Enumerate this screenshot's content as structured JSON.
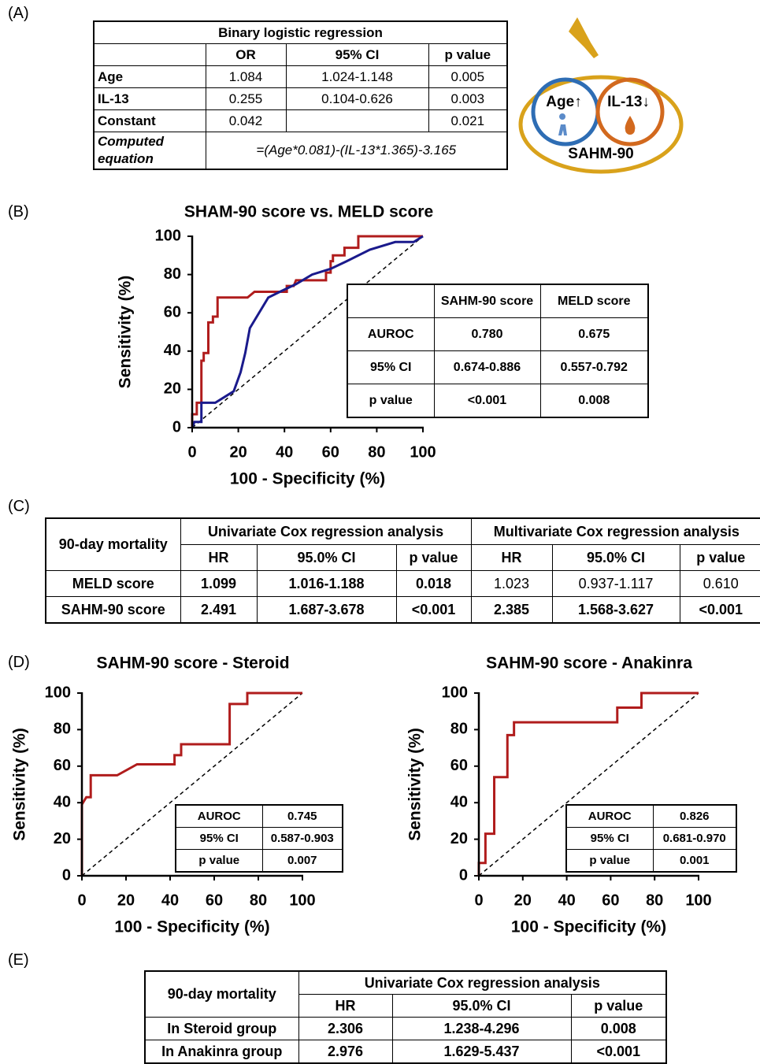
{
  "panel_labels": {
    "a": "(A)",
    "b": "(B)",
    "c": "(C)",
    "d": "(D)",
    "e": "(E)"
  },
  "table_a": {
    "title": "Binary logistic regression",
    "columns": [
      "OR",
      "95% CI",
      "p value"
    ],
    "rows": [
      {
        "label": "Age",
        "or": "1.084",
        "ci": "1.024-1.148",
        "p": "0.005"
      },
      {
        "label": "IL-13",
        "or": "0.255",
        "ci": "0.104-0.626",
        "p": "0.003"
      },
      {
        "label": "Constant",
        "or": "0.042",
        "p": "0.021"
      }
    ],
    "equation_label": "Computed equation",
    "equation": "=(Age*0.081)-(IL-13*1.365)-3.165"
  },
  "diagram": {
    "age": "Age↑",
    "il13": "IL-13↓",
    "score": "SAHM-90"
  },
  "chart_data": [
    {
      "type": "line",
      "title": "SHAM-90 score vs. MELD score",
      "x_label": "100 - Specificity (%)",
      "y_label": "Sensitivity (%)",
      "xlim": [
        0,
        100
      ],
      "ylim": [
        0,
        100
      ],
      "xticks": [
        0,
        20,
        40,
        60,
        80,
        100
      ],
      "yticks": [
        0,
        20,
        40,
        60,
        80,
        100
      ],
      "series": [
        {
          "color": "#b01c1c",
          "x": [
            0,
            0,
            2,
            2,
            4,
            4,
            5,
            5,
            7,
            7,
            9,
            9,
            11,
            11,
            24,
            27,
            41,
            41,
            44,
            45,
            58,
            58,
            60,
            60,
            61,
            61,
            66,
            66,
            72,
            72,
            100
          ],
          "values": [
            0,
            7,
            7,
            13,
            13,
            35,
            35,
            39,
            39,
            55,
            55,
            58,
            58,
            68,
            68,
            71,
            71,
            74,
            74,
            77,
            77,
            81,
            81,
            87,
            87,
            90,
            90,
            94,
            94,
            100,
            100
          ]
        },
        {
          "color": "#1a1a8c",
          "x": [
            0,
            1,
            4,
            4,
            10,
            18,
            21,
            23,
            25,
            33,
            38,
            45,
            52,
            60,
            67,
            77,
            88,
            96,
            100
          ],
          "values": [
            0,
            3,
            3,
            13,
            13,
            19,
            29,
            39,
            52,
            68,
            71,
            75,
            80,
            83,
            87,
            93,
            97,
            97,
            100
          ]
        }
      ],
      "inset_table": {
        "columns": [
          "SAHM-90 score",
          "MELD score"
        ],
        "rows": [
          {
            "label": "AUROC",
            "cells": [
              "0.780",
              "0.675"
            ]
          },
          {
            "label": "95% CI",
            "cells": [
              "0.674-0.886",
              "0.557-0.792"
            ]
          },
          {
            "label": "p value",
            "cells": [
              "<0.001",
              "0.008"
            ]
          }
        ]
      }
    },
    {
      "type": "line",
      "title": "SAHM-90 score - Steroid",
      "x_label": "100 - Specificity (%)",
      "y_label": "Sensitivity (%)",
      "xlim": [
        0,
        100
      ],
      "ylim": [
        0,
        100
      ],
      "xticks": [
        0,
        20,
        40,
        60,
        80,
        100
      ],
      "yticks": [
        0,
        20,
        40,
        60,
        80,
        100
      ],
      "series": [
        {
          "color": "#b01c1c",
          "x": [
            0,
            0,
            2,
            4,
            4,
            16,
            25,
            42,
            42,
            45,
            45,
            67,
            67,
            75,
            75,
            100
          ],
          "values": [
            0,
            39,
            43,
            43,
            55,
            55,
            61,
            61,
            66,
            66,
            72,
            72,
            94,
            94,
            100,
            100
          ]
        }
      ],
      "inset_table": {
        "rows": [
          {
            "label": "AUROC",
            "cells": [
              "0.745"
            ]
          },
          {
            "label": "95% CI",
            "cells": [
              "0.587-0.903"
            ]
          },
          {
            "label": "p value",
            "cells": [
              "0.007"
            ]
          }
        ]
      }
    },
    {
      "type": "line",
      "title": "SAHM-90 score - Anakinra",
      "x_label": "100 - Specificity (%)",
      "y_label": "Sensitivity (%)",
      "xlim": [
        0,
        100
      ],
      "ylim": [
        0,
        100
      ],
      "xticks": [
        0,
        20,
        40,
        60,
        80,
        100
      ],
      "yticks": [
        0,
        20,
        40,
        60,
        80,
        100
      ],
      "series": [
        {
          "color": "#b01c1c",
          "x": [
            0,
            0,
            3,
            3,
            7,
            7,
            13,
            13,
            16,
            16,
            63,
            63,
            74,
            74,
            100
          ],
          "values": [
            0,
            7,
            7,
            23,
            23,
            54,
            54,
            77,
            77,
            84,
            84,
            92,
            92,
            100,
            100
          ]
        }
      ],
      "inset_table": {
        "rows": [
          {
            "label": "AUROC",
            "cells": [
              "0.826"
            ]
          },
          {
            "label": "95% CI",
            "cells": [
              "0.681-0.970"
            ]
          },
          {
            "label": "p value",
            "cells": [
              "0.001"
            ]
          }
        ]
      }
    }
  ],
  "table_c": {
    "corner": "90-day mortality",
    "groups": [
      {
        "title": "Univariate Cox regression analysis",
        "columns": [
          "HR",
          "95.0% CI",
          "p value"
        ]
      },
      {
        "title": "Multivariate Cox regression analysis",
        "columns": [
          "HR",
          "95.0% CI",
          "p value"
        ]
      }
    ],
    "rows": [
      {
        "label": "MELD score",
        "cells": [
          "1.099",
          "1.016-1.188",
          "0.018",
          "1.023",
          "0.937-1.117",
          "0.610"
        ]
      },
      {
        "label": "SAHM-90 score",
        "cells": [
          "2.491",
          "1.687-3.678",
          "<0.001",
          "2.385",
          "1.568-3.627",
          "<0.001"
        ]
      }
    ]
  },
  "table_e": {
    "corner": "90-day mortality",
    "group": "Univariate Cox regression analysis",
    "columns": [
      "HR",
      "95.0% CI",
      "p value"
    ],
    "rows": [
      {
        "label": "In Steroid group",
        "cells": [
          "2.306",
          "1.238-4.296",
          "0.008"
        ]
      },
      {
        "label": "In Anakinra group",
        "cells": [
          "2.976",
          "1.629-5.437",
          "<0.001"
        ]
      }
    ]
  }
}
